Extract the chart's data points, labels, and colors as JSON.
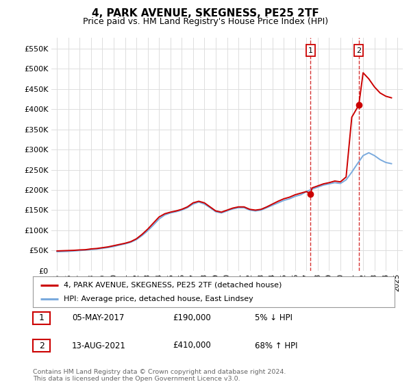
{
  "title": "4, PARK AVENUE, SKEGNESS, PE25 2TF",
  "subtitle": "Price paid vs. HM Land Registry's House Price Index (HPI)",
  "background_color": "#ffffff",
  "grid_color": "#dddddd",
  "hpi_color": "#7aaadd",
  "price_color": "#cc0000",
  "ylim": [
    0,
    577000
  ],
  "yticks": [
    0,
    50000,
    100000,
    150000,
    200000,
    250000,
    300000,
    350000,
    400000,
    450000,
    500000,
    550000
  ],
  "ytick_labels": [
    "£0",
    "£50K",
    "£100K",
    "£150K",
    "£200K",
    "£250K",
    "£300K",
    "£350K",
    "£400K",
    "£450K",
    "£500K",
    "£550K"
  ],
  "sale1_x": 2017.35,
  "sale1_y": 190000,
  "sale2_x": 2021.62,
  "sale2_y": 410000,
  "legend_entries": [
    "4, PARK AVENUE, SKEGNESS, PE25 2TF (detached house)",
    "HPI: Average price, detached house, East Lindsey"
  ],
  "table_rows": [
    [
      "1",
      "05-MAY-2017",
      "£190,000",
      "5% ↓ HPI"
    ],
    [
      "2",
      "13-AUG-2021",
      "£410,000",
      "68% ↑ HPI"
    ]
  ],
  "footer": "Contains HM Land Registry data © Crown copyright and database right 2024.\nThis data is licensed under the Open Government Licence v3.0.",
  "hpi_years": [
    1995,
    1995.5,
    1996,
    1996.5,
    1997,
    1997.5,
    1998,
    1998.5,
    1999,
    1999.5,
    2000,
    2000.5,
    2001,
    2001.5,
    2002,
    2002.5,
    2003,
    2003.5,
    2004,
    2004.5,
    2005,
    2005.5,
    2006,
    2006.5,
    2007,
    2007.5,
    2008,
    2008.5,
    2009,
    2009.5,
    2010,
    2010.5,
    2011,
    2011.5,
    2012,
    2012.5,
    2013,
    2013.5,
    2014,
    2014.5,
    2015,
    2015.5,
    2016,
    2016.5,
    2017,
    2017.5,
    2018,
    2018.5,
    2019,
    2019.5,
    2020,
    2020.5,
    2021,
    2021.5,
    2022,
    2022.5,
    2023,
    2023.5,
    2024,
    2024.5
  ],
  "hpi_values": [
    47000,
    47500,
    48000,
    49000,
    50000,
    51000,
    52500,
    53500,
    55500,
    57500,
    60000,
    63500,
    66500,
    70500,
    77000,
    87000,
    99000,
    113000,
    128000,
    138000,
    143000,
    146000,
    150000,
    156000,
    165000,
    170000,
    165000,
    156000,
    146000,
    143000,
    148000,
    153000,
    156000,
    156000,
    150000,
    148000,
    150000,
    156000,
    162000,
    168000,
    174000,
    178000,
    184000,
    188000,
    196000,
    202000,
    207000,
    212000,
    215000,
    218000,
    216000,
    225000,
    244000,
    265000,
    285000,
    292000,
    285000,
    275000,
    268000,
    265000
  ],
  "price_years": [
    1995,
    1995.5,
    1996,
    1996.5,
    1997,
    1997.5,
    1998,
    1998.5,
    1999,
    1999.5,
    2000,
    2000.5,
    2001,
    2001.5,
    2002,
    2002.5,
    2003,
    2003.5,
    2004,
    2004.5,
    2005,
    2005.5,
    2006,
    2006.5,
    2007,
    2007.5,
    2008,
    2008.5,
    2009,
    2009.5,
    2010,
    2010.5,
    2011,
    2011.5,
    2012,
    2012.5,
    2013,
    2013.5,
    2014,
    2014.5,
    2015,
    2015.5,
    2016,
    2016.5,
    2017,
    2017.35,
    2017.5,
    2018,
    2018.5,
    2019,
    2019.5,
    2020,
    2020.5,
    2021,
    2021.62,
    2022,
    2022.5,
    2023,
    2023.5,
    2024,
    2024.5
  ],
  "price_values": [
    49000,
    49500,
    50000,
    50500,
    51500,
    52000,
    54000,
    55000,
    57000,
    59000,
    62000,
    65000,
    68000,
    72000,
    79000,
    90000,
    103000,
    118000,
    133000,
    141000,
    145000,
    148000,
    152000,
    158000,
    168000,
    172000,
    168000,
    158000,
    148000,
    145000,
    150000,
    155000,
    158000,
    158000,
    152000,
    150000,
    152000,
    158000,
    165000,
    172000,
    178000,
    182000,
    188000,
    192000,
    196000,
    190000,
    205000,
    210000,
    215000,
    218000,
    222000,
    220000,
    232000,
    380000,
    410000,
    490000,
    475000,
    455000,
    440000,
    432000,
    428000
  ],
  "vline1_x": 2017.35,
  "vline2_x": 2021.62,
  "xlim": [
    1994.5,
    2025.5
  ],
  "xtick_years": [
    1995,
    1996,
    1997,
    1998,
    1999,
    2000,
    2001,
    2002,
    2003,
    2004,
    2005,
    2006,
    2007,
    2008,
    2009,
    2010,
    2011,
    2012,
    2013,
    2014,
    2015,
    2016,
    2017,
    2018,
    2019,
    2020,
    2021,
    2022,
    2023,
    2024,
    2025
  ]
}
